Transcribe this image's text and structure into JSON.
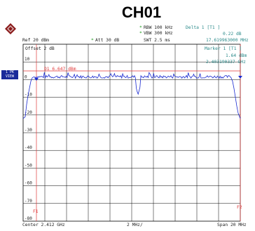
{
  "header": {
    "title": "CH01"
  },
  "settings": {
    "rbw": "RBW 100 kHz",
    "vbw": "VBW 300 kHz",
    "ref": "Ref  20 dBm",
    "att": "Att  30 dB",
    "swt": "SWT 2.5 ms",
    "offset": "Offset  2 dB"
  },
  "markers": {
    "delta_label": "Delta 1 [T1 ]",
    "delta_value": "0.22 dB",
    "delta_freq": "17.619963000 MHz",
    "marker_label": "Marker 1 [T1 ]",
    "marker_value": "1.64 dBm",
    "marker_freq": "2.403190337 GHz",
    "d1_line": "D1 6.647 dBm",
    "f1": "F1",
    "f2": "F2"
  },
  "side_tags": {
    "tag1": "1 PK\nVIEW",
    "tag2": "1 RM"
  },
  "y_ticks": [
    "20",
    "10",
    "0",
    "-10",
    "-20",
    "-30",
    "-40",
    "-50",
    "-60",
    "-70",
    "-80"
  ],
  "footer": {
    "center": "Center 2.412 GHz",
    "div": "2 MHz/",
    "span": "Span 20 MHz"
  },
  "colors": {
    "trace": "#1a2ad0",
    "marker_line": "#e03a3a",
    "grid": "#000000",
    "teal_text": "#2a8a8a"
  }
}
